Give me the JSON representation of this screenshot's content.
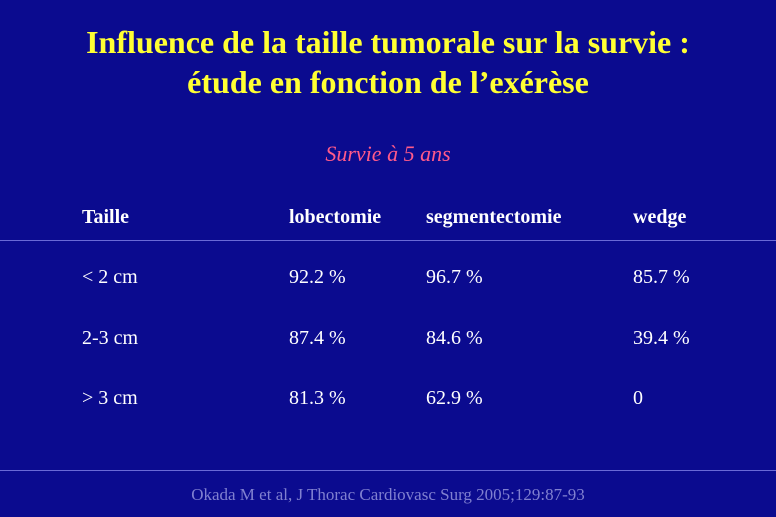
{
  "title": {
    "line1": "Influence de la taille tumorale sur la survie :",
    "line2": "étude en fonction de l’exérèse"
  },
  "subtitle": "Survie à 5 ans",
  "table": {
    "headers": [
      "Taille",
      "lobectomie",
      "segmentectomie",
      "wedge"
    ],
    "rows": [
      [
        "< 2 cm",
        "92.2 %",
        "96.7 %",
        "85.7 %"
      ],
      [
        "2-3 cm",
        "87.4 %",
        "84.6 %",
        "39.4 %"
      ],
      [
        "> 3 cm",
        "81.3 %",
        "62.9 %",
        "0"
      ]
    ]
  },
  "footer": "Okada M et al, J Thorac Cardiovasc Surg 2005;129:87-93",
  "colors": {
    "background": "#0b0b8f",
    "title": "#ffff33",
    "subtitle": "#ff5a8a",
    "text": "#ffffff",
    "footer": "#8080d0"
  }
}
